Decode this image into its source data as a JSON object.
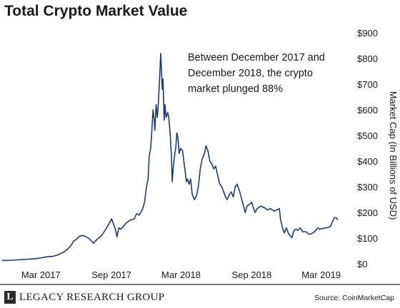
{
  "title": "Total Crypto Market Value",
  "annotation": {
    "lines": [
      "Between December 2017 and",
      "December 2018, the crypto",
      "market plunged 88%"
    ]
  },
  "footer": {
    "logo_text": "LEGACY RESEARCH GROUP",
    "source": "Source: CoinMarketCap"
  },
  "colors": {
    "line": "#1f3d6b",
    "text": "#1a1a1a",
    "footer_rule": "#7a7a7a"
  },
  "chart_data": {
    "type": "line",
    "title": "Total Crypto Market Value",
    "ylabel": "Market Cap (In Billions of USD)",
    "ylim": [
      0,
      900
    ],
    "y_ticks": [
      "$0",
      "$100",
      "$200",
      "$300",
      "$400",
      "$500",
      "$600",
      "$700",
      "$800",
      "$900"
    ],
    "y_axis_side": "right",
    "grid": false,
    "x_ticks": [
      "Mar 2017",
      "Sep 2017",
      "Mar 2018",
      "Sep 2018",
      "Mar 2019"
    ],
    "x_tick_dates": [
      "2017-03-01",
      "2017-09-01",
      "2018-03-01",
      "2018-09-01",
      "2019-03-01"
    ],
    "xlim": [
      "2016-11-20",
      "2019-05-15"
    ],
    "series": [
      {
        "color": "#1f3d6b",
        "points": [
          [
            "2016-11-20",
            13
          ],
          [
            "2016-12-15",
            14
          ],
          [
            "2017-01-15",
            17
          ],
          [
            "2017-02-15",
            20
          ],
          [
            "2017-03-01",
            23
          ],
          [
            "2017-03-15",
            27
          ],
          [
            "2017-04-01",
            29
          ],
          [
            "2017-04-15",
            35
          ],
          [
            "2017-05-01",
            47
          ],
          [
            "2017-05-10",
            58
          ],
          [
            "2017-05-20",
            75
          ],
          [
            "2017-05-25",
            88
          ],
          [
            "2017-06-01",
            95
          ],
          [
            "2017-06-10",
            108
          ],
          [
            "2017-06-20",
            110
          ],
          [
            "2017-07-01",
            102
          ],
          [
            "2017-07-10",
            90
          ],
          [
            "2017-07-16",
            80
          ],
          [
            "2017-07-25",
            95
          ],
          [
            "2017-08-05",
            108
          ],
          [
            "2017-08-15",
            130
          ],
          [
            "2017-08-25",
            155
          ],
          [
            "2017-09-01",
            175
          ],
          [
            "2017-09-05",
            160
          ],
          [
            "2017-09-12",
            130
          ],
          [
            "2017-09-15",
            105
          ],
          [
            "2017-09-20",
            140
          ],
          [
            "2017-09-25",
            135
          ],
          [
            "2017-10-01",
            145
          ],
          [
            "2017-10-10",
            160
          ],
          [
            "2017-10-20",
            170
          ],
          [
            "2017-10-30",
            175
          ],
          [
            "2017-11-05",
            195
          ],
          [
            "2017-11-12",
            190
          ],
          [
            "2017-11-20",
            210
          ],
          [
            "2017-11-26",
            240
          ],
          [
            "2017-12-01",
            300
          ],
          [
            "2017-12-05",
            330
          ],
          [
            "2017-12-08",
            420
          ],
          [
            "2017-12-12",
            450
          ],
          [
            "2017-12-15",
            520
          ],
          [
            "2017-12-18",
            600
          ],
          [
            "2017-12-21",
            560
          ],
          [
            "2017-12-23",
            520
          ],
          [
            "2017-12-26",
            620
          ],
          [
            "2017-12-29",
            570
          ],
          [
            "2018-01-01",
            630
          ],
          [
            "2018-01-04",
            720
          ],
          [
            "2018-01-07",
            820
          ],
          [
            "2018-01-09",
            750
          ],
          [
            "2018-01-11",
            680
          ],
          [
            "2018-01-13",
            720
          ],
          [
            "2018-01-16",
            560
          ],
          [
            "2018-01-18",
            620
          ],
          [
            "2018-01-21",
            570
          ],
          [
            "2018-01-25",
            590
          ],
          [
            "2018-01-28",
            570
          ],
          [
            "2018-02-01",
            500
          ],
          [
            "2018-02-04",
            420
          ],
          [
            "2018-02-06",
            320
          ],
          [
            "2018-02-09",
            380
          ],
          [
            "2018-02-12",
            420
          ],
          [
            "2018-02-15",
            450
          ],
          [
            "2018-02-18",
            510
          ],
          [
            "2018-02-21",
            490
          ],
          [
            "2018-02-24",
            430
          ],
          [
            "2018-02-28",
            450
          ],
          [
            "2018-03-05",
            440
          ],
          [
            "2018-03-10",
            380
          ],
          [
            "2018-03-15",
            320
          ],
          [
            "2018-03-18",
            330
          ],
          [
            "2018-03-22",
            310
          ],
          [
            "2018-03-26",
            330
          ],
          [
            "2018-03-30",
            270
          ],
          [
            "2018-04-05",
            250
          ],
          [
            "2018-04-10",
            265
          ],
          [
            "2018-04-15",
            300
          ],
          [
            "2018-04-20",
            370
          ],
          [
            "2018-04-25",
            410
          ],
          [
            "2018-05-01",
            430
          ],
          [
            "2018-05-05",
            460
          ],
          [
            "2018-05-10",
            440
          ],
          [
            "2018-05-15",
            400
          ],
          [
            "2018-05-20",
            390
          ],
          [
            "2018-05-25",
            370
          ],
          [
            "2018-05-30",
            380
          ],
          [
            "2018-06-05",
            340
          ],
          [
            "2018-06-10",
            310
          ],
          [
            "2018-06-15",
            300
          ],
          [
            "2018-06-20",
            280
          ],
          [
            "2018-06-25",
            260
          ],
          [
            "2018-06-29",
            250
          ],
          [
            "2018-07-05",
            270
          ],
          [
            "2018-07-10",
            280
          ],
          [
            "2018-07-15",
            260
          ],
          [
            "2018-07-20",
            300
          ],
          [
            "2018-07-25",
            310
          ],
          [
            "2018-08-01",
            280
          ],
          [
            "2018-08-08",
            240
          ],
          [
            "2018-08-15",
            200
          ],
          [
            "2018-08-20",
            225
          ],
          [
            "2018-08-25",
            230
          ],
          [
            "2018-09-01",
            240
          ],
          [
            "2018-09-05",
            220
          ],
          [
            "2018-09-10",
            200
          ],
          [
            "2018-09-15",
            215
          ],
          [
            "2018-09-20",
            220
          ],
          [
            "2018-09-25",
            225
          ],
          [
            "2018-10-01",
            220
          ],
          [
            "2018-10-05",
            218
          ],
          [
            "2018-10-12",
            210
          ],
          [
            "2018-10-20",
            215
          ],
          [
            "2018-10-30",
            205
          ],
          [
            "2018-11-05",
            210
          ],
          [
            "2018-11-12",
            215
          ],
          [
            "2018-11-15",
            175
          ],
          [
            "2018-11-20",
            140
          ],
          [
            "2018-11-25",
            120
          ],
          [
            "2018-11-30",
            140
          ],
          [
            "2018-12-07",
            115
          ],
          [
            "2018-12-15",
            102
          ],
          [
            "2018-12-20",
            130
          ],
          [
            "2018-12-25",
            135
          ],
          [
            "2018-12-31",
            130
          ],
          [
            "2019-01-05",
            140
          ],
          [
            "2019-01-12",
            125
          ],
          [
            "2019-01-20",
            125
          ],
          [
            "2019-01-28",
            115
          ],
          [
            "2019-02-05",
            118
          ],
          [
            "2019-02-12",
            125
          ],
          [
            "2019-02-20",
            140
          ],
          [
            "2019-02-25",
            135
          ],
          [
            "2019-03-05",
            138
          ],
          [
            "2019-03-15",
            140
          ],
          [
            "2019-03-25",
            145
          ],
          [
            "2019-04-01",
            170
          ],
          [
            "2019-04-05",
            180
          ],
          [
            "2019-04-10",
            178
          ],
          [
            "2019-04-13",
            170
          ]
        ]
      }
    ]
  }
}
